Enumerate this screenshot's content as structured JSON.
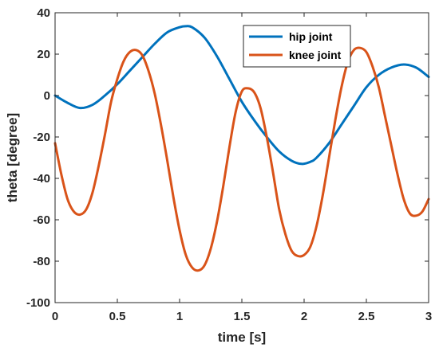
{
  "chart_data": {
    "type": "line",
    "title": "",
    "xlabel": "time [s]",
    "ylabel": "theta [degree]",
    "xlim": [
      0,
      3
    ],
    "ylim": [
      -100,
      40
    ],
    "xticks": [
      0,
      0.5,
      1,
      1.5,
      2,
      2.5,
      3
    ],
    "xtick_labels": [
      "0",
      "0.5",
      "1",
      "1.5",
      "2",
      "2.5",
      "3"
    ],
    "yticks": [
      -100,
      -80,
      -60,
      -40,
      -20,
      0,
      20,
      40
    ],
    "ytick_labels": [
      "-100",
      "-80",
      "-60",
      "-40",
      "-20",
      "0",
      "20",
      "40"
    ],
    "grid": false,
    "legend_position": "top-right",
    "series": [
      {
        "name": "hip joint",
        "color": "#0072BD",
        "x": [
          0,
          0.1,
          0.2,
          0.3,
          0.4,
          0.5,
          0.6,
          0.7,
          0.8,
          0.9,
          1.0,
          1.05,
          1.1,
          1.2,
          1.3,
          1.4,
          1.5,
          1.6,
          1.7,
          1.8,
          1.9,
          1.98,
          2.05,
          2.1,
          2.2,
          2.3,
          2.4,
          2.5,
          2.6,
          2.7,
          2.8,
          2.9,
          3.0
        ],
        "y": [
          0,
          -3.5,
          -6,
          -4.5,
          0,
          5.5,
          12,
          18.5,
          25,
          30.5,
          33,
          33.5,
          33,
          28,
          19,
          8,
          -3,
          -12,
          -20,
          -27,
          -31.5,
          -33,
          -32,
          -30,
          -23,
          -14,
          -5,
          4,
          10,
          13.5,
          15,
          13.5,
          9
        ]
      },
      {
        "name": "knee joint",
        "color": "#D95319",
        "x": [
          0,
          0.05,
          0.1,
          0.15,
          0.2,
          0.25,
          0.3,
          0.35,
          0.4,
          0.45,
          0.5,
          0.55,
          0.6,
          0.65,
          0.7,
          0.75,
          0.8,
          0.85,
          0.9,
          0.95,
          1.0,
          1.05,
          1.1,
          1.15,
          1.2,
          1.25,
          1.3,
          1.35,
          1.4,
          1.45,
          1.5,
          1.55,
          1.6,
          1.65,
          1.7,
          1.75,
          1.8,
          1.85,
          1.9,
          1.95,
          2.0,
          2.05,
          2.1,
          2.15,
          2.2,
          2.25,
          2.3,
          2.35,
          2.4,
          2.45,
          2.5,
          2.55,
          2.6,
          2.65,
          2.7,
          2.75,
          2.8,
          2.85,
          2.9,
          2.95,
          3.0
        ],
        "y": [
          -23,
          -38,
          -50,
          -56,
          -57.5,
          -55,
          -47,
          -34,
          -19,
          -3,
          8,
          16.5,
          21,
          22,
          19.5,
          12,
          1,
          -14,
          -31,
          -49,
          -65,
          -77,
          -83,
          -84.5,
          -82,
          -74,
          -61,
          -44,
          -25,
          -8,
          2,
          3.5,
          1.5,
          -6,
          -20,
          -37,
          -55,
          -67,
          -75,
          -77.5,
          -77,
          -73,
          -63,
          -48,
          -30,
          -12,
          4,
          16,
          22,
          23,
          21,
          14,
          4,
          -10,
          -24,
          -38,
          -50,
          -57,
          -58,
          -56,
          -50
        ]
      }
    ]
  }
}
